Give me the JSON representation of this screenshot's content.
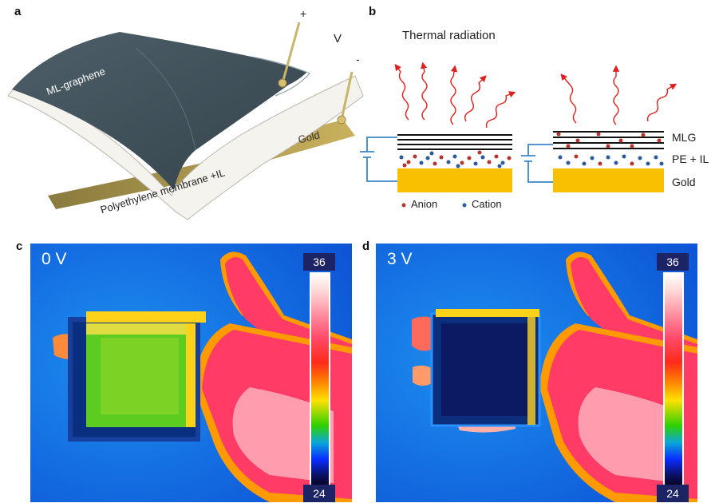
{
  "panels": {
    "a": {
      "label": "a",
      "plus": "+",
      "minus": "-",
      "voltage": "V",
      "graphene": "ML-graphene",
      "membrane": "Polyethylene membrane +IL",
      "gold": "Gold"
    },
    "b": {
      "label": "b",
      "title": "Thermal radiation",
      "mlg": "MLG",
      "pe_il": "PE + IL",
      "gold": "Gold",
      "anion": "Anion",
      "cation": "Cation",
      "colors": {
        "anion": "#b5342c",
        "cation": "#2b5b9c",
        "gold": "#f8c000",
        "wire": "#3a86c8",
        "arrow": "#e02020"
      }
    },
    "c": {
      "label": "c",
      "voltage": "0 V",
      "scale_max": "36",
      "scale_min": "24"
    },
    "d": {
      "label": "d",
      "voltage": "3 V",
      "scale_max": "36",
      "scale_min": "24"
    }
  }
}
